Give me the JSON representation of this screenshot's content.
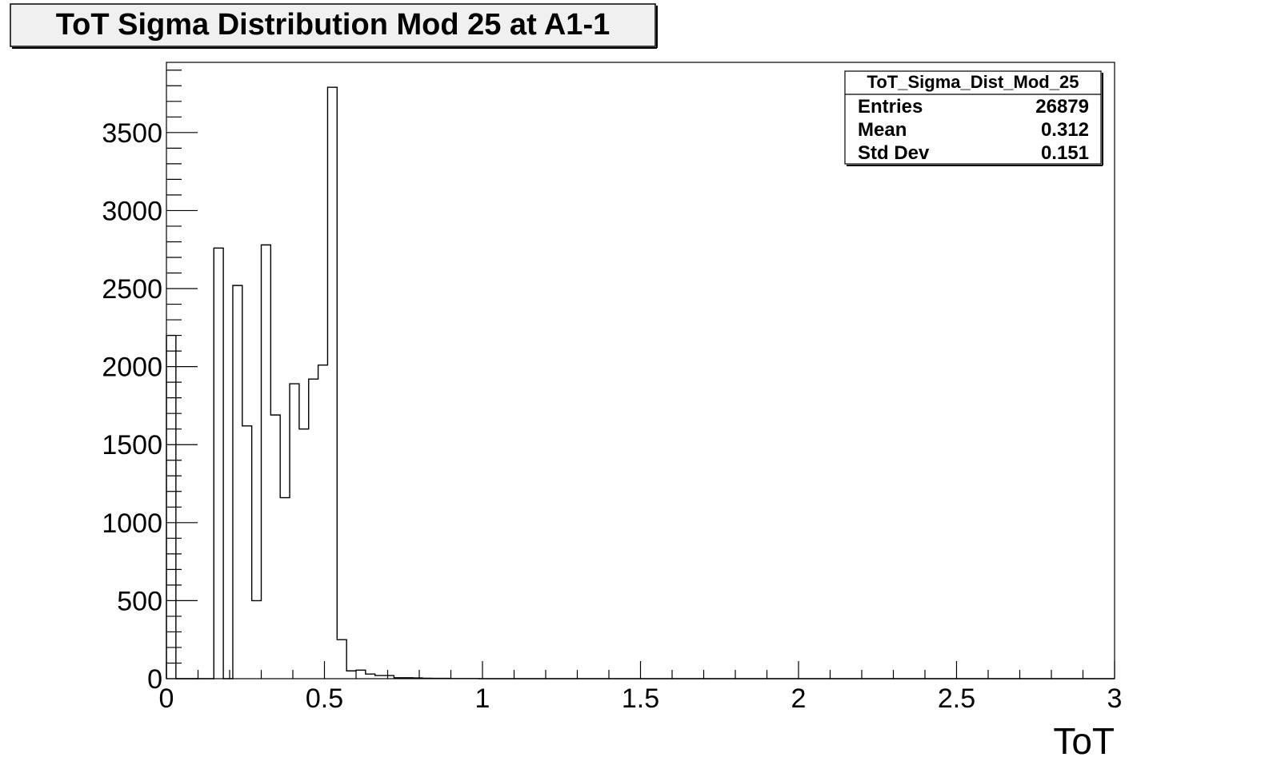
{
  "title": "ToT Sigma Distribution Mod 25 at A1-1",
  "stats": {
    "name": "ToT_Sigma_Dist_Mod_25",
    "rows": [
      {
        "label": "Entries",
        "value": "26879"
      },
      {
        "label": "Mean",
        "value": "0.312"
      },
      {
        "label": "Std Dev",
        "value": "0.151"
      }
    ]
  },
  "chart_data": {
    "type": "bar",
    "title": "ToT Sigma Distribution Mod 25 at A1-1",
    "xlabel": "ToT",
    "ylabel": "",
    "xlim": [
      0,
      3
    ],
    "ylim": [
      0,
      3950
    ],
    "bin_width": 0.03,
    "x_ticks": [
      "0",
      "0.5",
      "1",
      "1.5",
      "2",
      "2.5",
      "3"
    ],
    "y_ticks": [
      "0",
      "500",
      "1000",
      "1500",
      "2000",
      "2500",
      "3000",
      "3500"
    ],
    "grid": false,
    "legend": "top-right stats box",
    "values": [
      2200,
      0,
      0,
      0,
      0,
      2760,
      0,
      2520,
      1620,
      500,
      2780,
      1690,
      1160,
      1890,
      1600,
      1920,
      2010,
      3790,
      250,
      50,
      55,
      30,
      20,
      20,
      6,
      6,
      5,
      3,
      2,
      2,
      1,
      1,
      1,
      0,
      0,
      0,
      0,
      0,
      0,
      0,
      0,
      0,
      0,
      0,
      0,
      0,
      0,
      0,
      0,
      0,
      0,
      0,
      0,
      0,
      0,
      0,
      0,
      0,
      0,
      0,
      0,
      0,
      0,
      0,
      0,
      0,
      0,
      0,
      0,
      0,
      0,
      0,
      0,
      0,
      0,
      0,
      0,
      0,
      0,
      0,
      0,
      0,
      0,
      0,
      0,
      0,
      0,
      0,
      0,
      0,
      0,
      0,
      0,
      0,
      0,
      0,
      0,
      0,
      0,
      0
    ]
  }
}
